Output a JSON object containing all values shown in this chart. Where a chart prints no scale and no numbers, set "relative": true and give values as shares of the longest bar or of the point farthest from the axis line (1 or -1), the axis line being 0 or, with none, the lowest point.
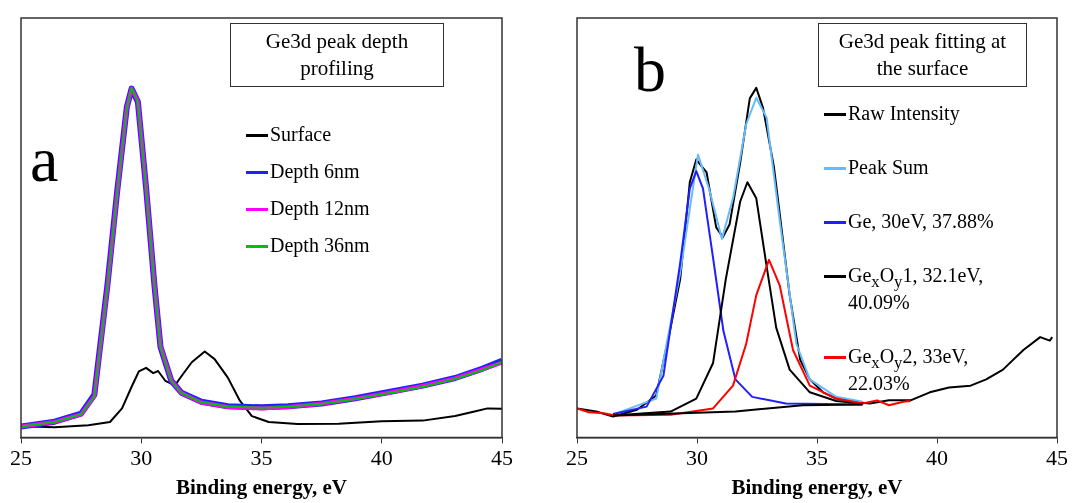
{
  "chart_data": [
    {
      "type": "line",
      "title": "Ge3d peak depth profiling",
      "xlabel": "Binding energy, eV",
      "annotations": [
        "a"
      ],
      "relative": true,
      "xlim": [
        25,
        45
      ],
      "xticks": [
        25,
        30,
        35,
        40,
        45
      ],
      "legend": "right",
      "series": [
        {
          "name": "Surface",
          "color": "#000000",
          "x": [
            25,
            26.4,
            27.8,
            28.7,
            29.2,
            29.6,
            29.9,
            30.2,
            30.5,
            30.7,
            31.0,
            31.4,
            31.67,
            32.1,
            32.64,
            33.05,
            33.6,
            34.1,
            34.6,
            35.3,
            36.5,
            38.2,
            40.0,
            41.7,
            43.05,
            43.9,
            44.4,
            45
          ],
          "values": [
            0.032,
            0.029,
            0.035,
            0.044,
            0.083,
            0.145,
            0.189,
            0.199,
            0.184,
            0.19,
            0.162,
            0.149,
            0.175,
            0.215,
            0.246,
            0.224,
            0.171,
            0.105,
            0.061,
            0.044,
            0.038,
            0.039,
            0.046,
            0.048,
            0.061,
            0.075,
            0.083,
            0.082
          ]
        },
        {
          "name": "Depth 6nm",
          "color": "#2020ff",
          "x": [
            25,
            26.4,
            27.5,
            28.05,
            28.6,
            29.0,
            29.4,
            29.6,
            29.86,
            30.2,
            30.55,
            30.8,
            31.25,
            31.67,
            32.5,
            33.6,
            35.0,
            36.1,
            37.5,
            38.9,
            40.3,
            41.7,
            43.05,
            44.2,
            45
          ],
          "values": [
            0.031,
            0.045,
            0.068,
            0.122,
            0.44,
            0.705,
            0.945,
            0.998,
            0.96,
            0.715,
            0.434,
            0.259,
            0.162,
            0.128,
            0.102,
            0.089,
            0.086,
            0.089,
            0.097,
            0.112,
            0.13,
            0.148,
            0.17,
            0.197,
            0.219
          ]
        },
        {
          "name": "Depth 12nm",
          "color": "#ff00ff",
          "x": [
            25,
            26.4,
            27.5,
            28.05,
            28.6,
            29.0,
            29.4,
            29.6,
            29.86,
            30.2,
            30.55,
            30.8,
            31.25,
            31.67,
            32.5,
            33.6,
            35.0,
            36.1,
            37.5,
            38.9,
            40.3,
            41.7,
            43.05,
            44.2,
            45
          ],
          "values": [
            0.031,
            0.044,
            0.066,
            0.118,
            0.434,
            0.7,
            0.943,
            0.998,
            0.962,
            0.718,
            0.437,
            0.261,
            0.163,
            0.127,
            0.1,
            0.087,
            0.083,
            0.087,
            0.096,
            0.111,
            0.128,
            0.147,
            0.169,
            0.195,
            0.214
          ]
        },
        {
          "name": "Depth 36nm",
          "color": "#00c000",
          "x": [
            25,
            26.4,
            27.5,
            28.05,
            28.6,
            29.0,
            29.4,
            29.6,
            29.86,
            30.2,
            30.55,
            30.8,
            31.25,
            31.67,
            32.5,
            33.6,
            35.0,
            36.1,
            37.5,
            38.9,
            40.3,
            41.7,
            43.05,
            44.2,
            45
          ],
          "values": [
            0.031,
            0.044,
            0.066,
            0.118,
            0.434,
            0.7,
            0.943,
            1,
            0.96,
            0.715,
            0.434,
            0.259,
            0.162,
            0.127,
            0.101,
            0.088,
            0.085,
            0.088,
            0.096,
            0.11,
            0.127,
            0.145,
            0.167,
            0.193,
            0.215
          ]
        }
      ]
    },
    {
      "type": "line",
      "title": "Ge3d peak fitting at the surface",
      "xlabel": "Binding energy, eV",
      "annotations": [
        "b"
      ],
      "relative": true,
      "xlim": [
        25,
        45
      ],
      "xticks": [
        25,
        30,
        35,
        40,
        45
      ],
      "legend": "right",
      "series": [
        {
          "name": "Raw Intensity",
          "color": "#000000",
          "x": [
            25,
            25.8,
            26.5,
            27.5,
            28.3,
            28.9,
            29.3,
            29.7,
            29.97,
            30.4,
            30.8,
            31.08,
            31.36,
            31.8,
            32.2,
            32.47,
            32.75,
            33.2,
            33.45,
            33.86,
            34.3,
            34.7,
            35.25,
            35.8,
            36.5,
            37.2,
            38.0,
            38.9,
            39.7,
            40.5,
            41.4,
            42.05,
            42.75,
            43.6,
            44.3,
            44.7,
            44.8
          ],
          "values": [
            0.083,
            0.074,
            0.06,
            0.079,
            0.12,
            0.314,
            0.453,
            0.73,
            0.795,
            0.758,
            0.601,
            0.573,
            0.61,
            0.786,
            0.97,
            1,
            0.943,
            0.776,
            0.638,
            0.407,
            0.222,
            0.166,
            0.129,
            0.111,
            0.102,
            0.097,
            0.106,
            0.106,
            0.129,
            0.143,
            0.148,
            0.166,
            0.194,
            0.25,
            0.287,
            0.277,
            0.287
          ]
        },
        {
          "name": "Peak Sum",
          "color": "#66bbff",
          "x": [
            26.5,
            28.3,
            29.3,
            30.04,
            30.5,
            31.04,
            31.5,
            32.05,
            32.47,
            32.9,
            33.45,
            34.14,
            34.7,
            35.8,
            36.9
          ],
          "values": [
            0.065,
            0.111,
            0.471,
            0.809,
            0.712,
            0.568,
            0.684,
            0.896,
            0.972,
            0.915,
            0.619,
            0.268,
            0.166,
            0.116,
            0.102
          ]
        },
        {
          "name": "Ge, 30eV, 37.88%",
          "color": "#1f1fff",
          "x": [
            26.5,
            27.9,
            28.6,
            29.3,
            29.7,
            29.97,
            30.25,
            30.7,
            31.1,
            31.6,
            32.3,
            33.7,
            36.9
          ],
          "values": [
            0.067,
            0.088,
            0.176,
            0.499,
            0.712,
            0.762,
            0.712,
            0.499,
            0.305,
            0.166,
            0.116,
            0.097,
            0.094
          ]
        },
        {
          "name": "Ge$_{x}$O$_{y}$1, 32.1eV, 40.09%",
          "color": "#000000",
          "x": [
            26.5,
            28.9,
            29.97,
            30.67,
            31.2,
            31.8,
            32.1,
            32.47,
            32.9,
            33.3,
            33.86,
            34.7,
            35.8,
            36.9
          ],
          "values": [
            0.063,
            0.074,
            0.111,
            0.213,
            0.453,
            0.675,
            0.73,
            0.684,
            0.49,
            0.314,
            0.194,
            0.129,
            0.104,
            0.097
          ]
        },
        {
          "name": "Ge$_{x}$O$_{y}$2, 33eV, 22.03%",
          "color": "#ff0000",
          "x": [
            25,
            25.5,
            26.1,
            26.6,
            28.9,
            30.67,
            31.5,
            32.05,
            32.47,
            33.0,
            33.45,
            34.0,
            34.7,
            35.8,
            36.9,
            37.5,
            38.0,
            38.6,
            38.9
          ],
          "values": [
            0.083,
            0.072,
            0.069,
            0.063,
            0.065,
            0.083,
            0.148,
            0.268,
            0.407,
            0.508,
            0.434,
            0.25,
            0.148,
            0.111,
            0.097,
            0.106,
            0.092,
            0.102,
            0.104
          ]
        },
        {
          "color": "#000000",
          "x": [
            26.5,
            31.6,
            34.4,
            36.9
          ],
          "values": [
            0.063,
            0.074,
            0.092,
            0.094
          ]
        }
      ]
    }
  ]
}
